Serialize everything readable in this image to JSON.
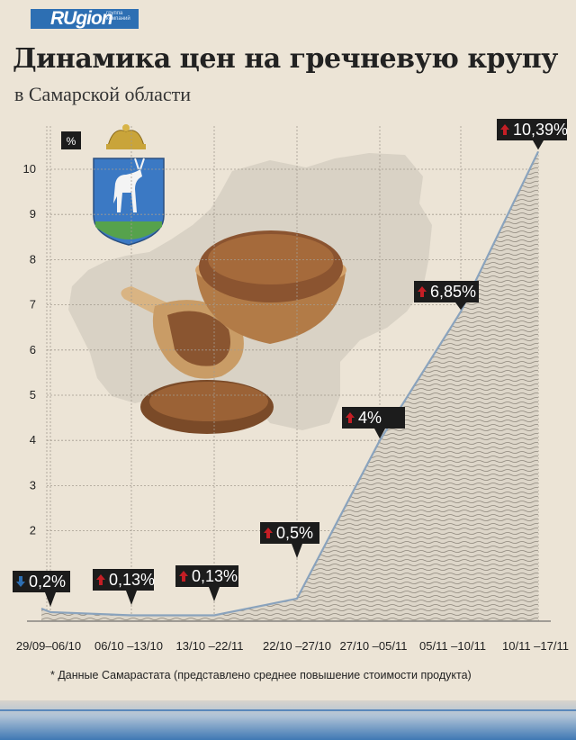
{
  "brand": {
    "name": "RUgion",
    "tagline": "группа компаний"
  },
  "title": "Динамика цен на гречневую крупу",
  "subtitle": "в Самарской области",
  "note": "* Данные Самарастата (представлено среднее повышение стоимости продукта)",
  "colors": {
    "background": "#ece4d6",
    "line": "#8aa3bd",
    "up": "#c41e25",
    "down": "#2d6fb3",
    "label_bg": "#1c1c1c"
  },
  "chart_data": {
    "type": "area",
    "title": "Динамика цен на гречневую крупу",
    "subtitle": "в Самарской области",
    "ylabel": "%",
    "ylim": [
      0,
      10.6
    ],
    "yticks": [
      2,
      3,
      4,
      5,
      6,
      7,
      8,
      9,
      10
    ],
    "grid": true,
    "categories": [
      "29/09–06/10",
      "06/10 –13/10",
      "13/10 –22/11",
      "22/10 –27/10",
      "27/10 –05/11",
      "05/11 –10/11",
      "10/11 –17/11"
    ],
    "values": [
      0.2,
      0.13,
      0.13,
      0.5,
      4,
      6.85,
      10.39
    ],
    "labels": [
      "0,2%",
      "0,13%",
      "0,13%",
      "0,5%",
      "4%",
      "6,85%",
      "10,39%"
    ],
    "directions": [
      "down",
      "up",
      "up",
      "up",
      "up",
      "up",
      "up"
    ]
  }
}
